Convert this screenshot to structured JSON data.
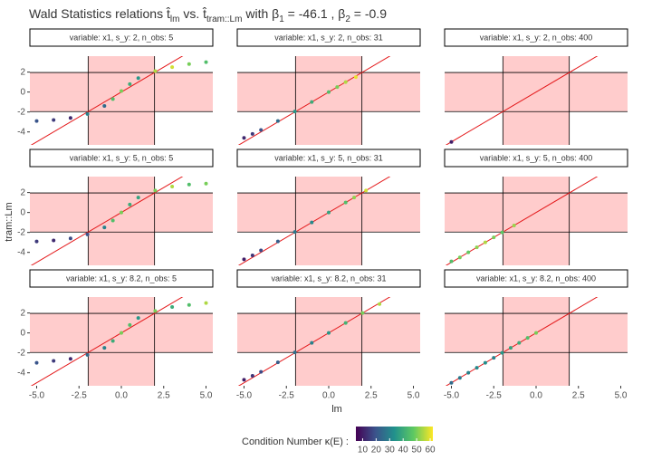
{
  "chart_data": {
    "type": "scatter",
    "title_parts": [
      {
        "text": "Wald Statistics relations  ",
        "sub": false
      },
      {
        "text": "t̂",
        "sub": false
      },
      {
        "text": "lm",
        "sub": true
      },
      {
        "text": " vs. ",
        "sub": false
      },
      {
        "text": "t̂",
        "sub": false
      },
      {
        "text": "tram::Lm",
        "sub": true
      },
      {
        "text": "  with β",
        "sub": false
      },
      {
        "text": "1",
        "sub": true
      },
      {
        "text": " = -46.1 , β",
        "sub": false
      },
      {
        "text": "2",
        "sub": true
      },
      {
        "text": " = -0.9",
        "sub": false
      }
    ],
    "xlabel": "lm",
    "ylabel": "tram::Lm",
    "xlim": [
      -5.4,
      5.4
    ],
    "ylim": [
      -5.3,
      3.6
    ],
    "xticks": [
      {
        "value": -5,
        "label": "-5.0"
      },
      {
        "value": -2.5,
        "label": "-2.5"
      },
      {
        "value": 0,
        "label": "0.0"
      },
      {
        "value": 2.5,
        "label": "2.5"
      },
      {
        "value": 5,
        "label": "5.0"
      }
    ],
    "yticks": [
      -4,
      -2,
      0,
      2
    ],
    "reference_lines": [
      -1.96,
      1.96
    ],
    "band_color": "#ffcccc",
    "identity_color": "#e41a1c",
    "legend_title": "Condition Number κ(E) :",
    "colorscale": [
      "#440154",
      "#3b528b",
      "#21918c",
      "#5ec962",
      "#fde725"
    ],
    "colorlim": [
      5,
      62
    ],
    "colorticks": [
      10,
      20,
      30,
      40,
      50,
      60
    ],
    "panels": [
      {
        "strip": "variable: x1, s_y: 2, n_obs: 5",
        "x": [
          -5,
          -4,
          -3,
          -2,
          -1,
          -0.5,
          0,
          0.5,
          1,
          2,
          3,
          4,
          5
        ],
        "y": [
          -2.9,
          -2.8,
          -2.6,
          -2.2,
          -1.4,
          -0.7,
          0.1,
          0.8,
          1.4,
          2.1,
          2.5,
          2.8,
          3.0
        ],
        "kappa": [
          20,
          15,
          12,
          30,
          25,
          45,
          50,
          40,
          35,
          55,
          58,
          50,
          45
        ]
      },
      {
        "strip": "variable: x1, s_y: 2, n_obs: 31",
        "x": [
          -5,
          -4.5,
          -4,
          -3,
          -2,
          -1,
          0,
          0.5,
          1,
          1.6
        ],
        "y": [
          -4.6,
          -4.2,
          -3.8,
          -2.9,
          -1.95,
          -1.0,
          0,
          0.5,
          1.0,
          1.5
        ],
        "kappa": [
          12,
          15,
          20,
          25,
          35,
          40,
          45,
          50,
          55,
          60
        ]
      },
      {
        "strip": "variable: x1, s_y: 2, n_obs: 400",
        "x": [
          -5
        ],
        "y": [
          -5
        ],
        "kappa": [
          10
        ]
      },
      {
        "strip": "variable: x1, s_y: 5, n_obs: 5",
        "x": [
          -5,
          -4,
          -3,
          -2,
          -1,
          -0.5,
          0,
          0.5,
          1,
          2,
          3,
          4,
          5
        ],
        "y": [
          -2.9,
          -2.8,
          -2.6,
          -2.2,
          -1.5,
          -0.8,
          0,
          0.8,
          1.5,
          2.2,
          2.6,
          2.8,
          2.9
        ],
        "kappa": [
          15,
          12,
          18,
          20,
          30,
          45,
          50,
          40,
          38,
          50,
          55,
          45,
          50
        ]
      },
      {
        "strip": "variable: x1, s_y: 5, n_obs: 31",
        "x": [
          -5,
          -4.5,
          -4,
          -3,
          -2,
          -1,
          0,
          1,
          1.5,
          2.2
        ],
        "y": [
          -4.7,
          -4.3,
          -3.8,
          -2.9,
          -1.95,
          -1.0,
          0,
          1.0,
          1.5,
          2.2
        ],
        "kappa": [
          10,
          14,
          18,
          22,
          28,
          32,
          38,
          45,
          52,
          58
        ]
      },
      {
        "strip": "variable: x1, s_y: 5, n_obs: 400",
        "x": [
          -5,
          -4.5,
          -4,
          -3.5,
          -3,
          -2.5,
          -2,
          -1.3
        ],
        "y": [
          -4.9,
          -4.5,
          -4.0,
          -3.5,
          -3.0,
          -2.5,
          -2.0,
          -1.3
        ],
        "kappa": [
          45,
          50,
          48,
          52,
          55,
          50,
          47,
          53
        ]
      },
      {
        "strip": "variable: x1, s_y: 8.2, n_obs: 5",
        "x": [
          -5,
          -4,
          -3,
          -2,
          -1,
          -0.5,
          0,
          0.5,
          1,
          2,
          3,
          4,
          5
        ],
        "y": [
          -3.0,
          -2.8,
          -2.6,
          -2.2,
          -1.5,
          -0.8,
          0,
          0.8,
          1.5,
          2.2,
          2.6,
          2.8,
          3.0
        ],
        "kappa": [
          20,
          15,
          12,
          25,
          30,
          40,
          50,
          45,
          35,
          50,
          40,
          45,
          55
        ]
      },
      {
        "strip": "variable: x1, s_y: 8.2, n_obs: 31",
        "x": [
          -5,
          -4.5,
          -4,
          -3,
          -2,
          -1,
          0,
          1,
          2,
          3
        ],
        "y": [
          -4.7,
          -4.3,
          -3.9,
          -2.95,
          -1.95,
          -1.0,
          0,
          1.0,
          2.0,
          2.9
        ],
        "kappa": [
          10,
          14,
          18,
          22,
          26,
          30,
          35,
          42,
          50,
          55
        ]
      },
      {
        "strip": "variable: x1, s_y: 8.2, n_obs: 400",
        "x": [
          -5,
          -4.5,
          -4,
          -3.5,
          -3,
          -2.5,
          -2,
          -1.5,
          -1,
          -0.5,
          0
        ],
        "y": [
          -5.0,
          -4.5,
          -4.0,
          -3.5,
          -3.0,
          -2.5,
          -2.0,
          -1.5,
          -1.0,
          -0.5,
          0
        ],
        "kappa": [
          25,
          28,
          30,
          32,
          33,
          30,
          35,
          38,
          40,
          45,
          50
        ]
      }
    ]
  }
}
